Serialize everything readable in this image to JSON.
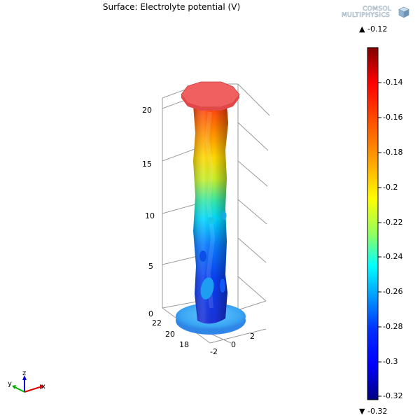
{
  "plot": {
    "title": "Surface: Electrolyte potential (V)",
    "z_ticks": [
      "20",
      "15",
      "10",
      "5",
      "0"
    ],
    "y_ticks": [
      "22",
      "20",
      "18"
    ],
    "x_ticks": [
      "-2",
      "0",
      "2"
    ]
  },
  "logo": {
    "line1": "COMSOL",
    "line2": "MULTIPHYSICS"
  },
  "colorbar": {
    "max_label": "-0.12",
    "min_label": "-0.32",
    "ticks": [
      "-0.14",
      "-0.16",
      "-0.18",
      "-0.2",
      "-0.22",
      "-0.24",
      "-0.26",
      "-0.28",
      "-0.3",
      "-0.32"
    ],
    "max_marker": "▲",
    "min_marker": "▼"
  },
  "axes_triad": {
    "z": "z",
    "y": "y",
    "x": "x"
  },
  "colors": {
    "high": "#800000",
    "mid_high": "#ff0000",
    "mid": "#ffff00",
    "mid_low": "#00ffff",
    "low": "#0000ff",
    "lowest": "#000080"
  }
}
